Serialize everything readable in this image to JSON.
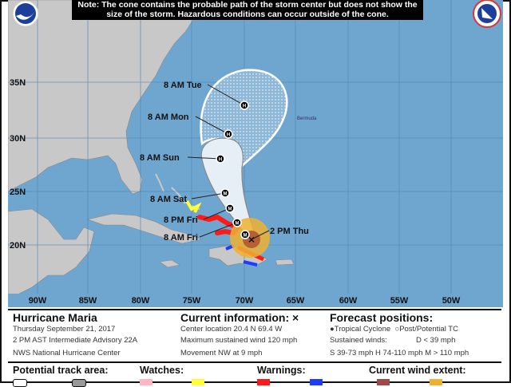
{
  "note": "Note: The cone contains the probable path of the storm center but does not show the size of the storm. Hazardous conditions can occur outside of the cone.",
  "logos": {
    "left": "NOAA",
    "right": "NWS"
  },
  "map": {
    "lat_labels": [
      "35N",
      "30N",
      "25N",
      "20N"
    ],
    "lon_labels": [
      "90W",
      "85W",
      "80W",
      "75W",
      "70W",
      "65W",
      "60W",
      "55W",
      "50W"
    ],
    "place_labels": {
      "bermuda": "Bermuda"
    },
    "forecast_points": [
      {
        "label": "2 PM Thu",
        "marker": "x"
      },
      {
        "label": "8 AM Fri",
        "marker": "M"
      },
      {
        "label": "8 PM Fri",
        "marker": "M"
      },
      {
        "label": "8 AM Sat",
        "marker": "M"
      },
      {
        "label": "8 AM Sun",
        "marker": "H"
      },
      {
        "label": "8 AM Mon",
        "marker": "H"
      },
      {
        "label": "8 AM Tue",
        "marker": "H"
      }
    ],
    "colors": {
      "ocean": "#6fa6cf",
      "land": "#c8c8c8",
      "cone": "#e6eef6",
      "hurricane_warning": "#ff1a1a",
      "tropical_storm_watch": "#ffff33",
      "tropical_storm_warning": "#1d3cff",
      "hurricane_wind": "#b05030",
      "tropical_storm_wind": "#f0b030"
    }
  },
  "info": {
    "storm_name": "Hurricane Maria",
    "date": "Thursday September 21, 2017",
    "advisory": "2 PM AST Intermediate Advisory 22A",
    "center": "NWS National Hurricane Center",
    "current_title": "Current information: ×",
    "center_location": "Center location 20.4 N 69.4 W",
    "max_wind": "Maximum sustained wind 120 mph",
    "movement": "Movement NW at 9 mph",
    "forecast_title": "Forecast positions:",
    "tropical_cyclone": "Tropical Cyclone",
    "post_tc": "Post/Potential TC",
    "sustained": "Sustained winds:",
    "d": "D < 39 mph",
    "s": "S 39-73 mph",
    "h": "H 74-110 mph",
    "m": "M > 110 mph"
  },
  "legend": {
    "track_area": "Potential track area:",
    "watches": "Watches:",
    "warnings": "Warnings:",
    "wind_extent": "Current wind extent:"
  }
}
